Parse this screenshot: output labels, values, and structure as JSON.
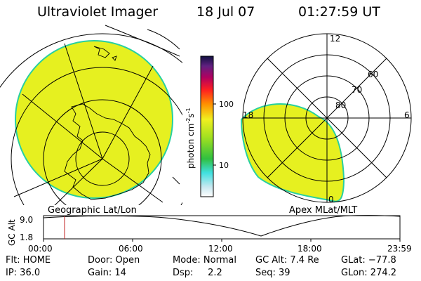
{
  "header": {
    "title": "Ultraviolet Imager",
    "date": "18 Jul 07",
    "time": "01:27:59 UT"
  },
  "geo_panel": {
    "label": "Geographic Lat/Lon"
  },
  "apex_panel": {
    "label": "Apex MLat/MLT",
    "mlt_labels": {
      "top": "12",
      "right": "6",
      "left": "18",
      "bottom": "0"
    },
    "lat_labels": [
      "60",
      "70",
      "80"
    ]
  },
  "colorbar": {
    "unit_main": "photon cm",
    "unit_sup1": "-2",
    "unit_s": "s",
    "unit_sup2": "-1",
    "ticks": [
      "100",
      "10"
    ]
  },
  "orbit": {
    "ylabel": "GC Alt",
    "y_ticks": [
      "9.0",
      "1.8"
    ],
    "x_ticks": [
      "00:00",
      "06:00",
      "12:00",
      "18:00",
      "23:59"
    ]
  },
  "info": {
    "flt": "Flt: HOME",
    "ip": "IP: 36.0",
    "door": "Door: Open",
    "gain": "Gain: 14",
    "mode": "Mode: Normal",
    "dsp": "Dsp:     2.2",
    "gcalt": "GC Alt: 7.4 Re",
    "seq": "Seq: 39",
    "glat": "GLat: −77.8",
    "glon": "GLon: 274.2"
  },
  "colors": {
    "fill": "#e6f020",
    "edge": "#28d0a0"
  }
}
